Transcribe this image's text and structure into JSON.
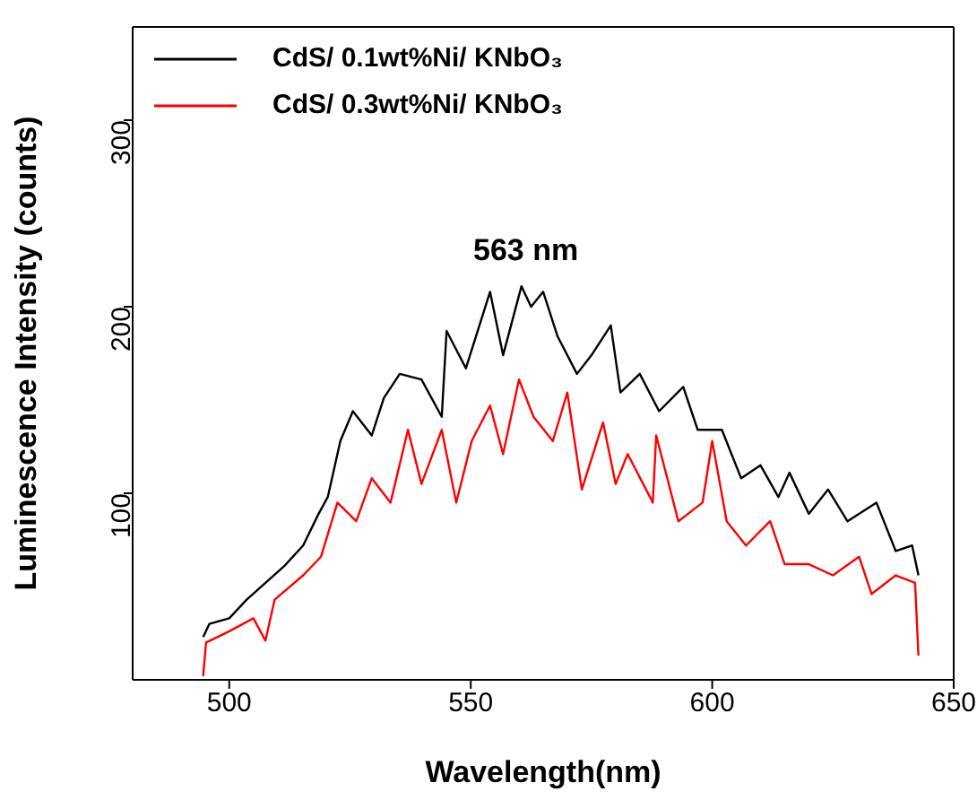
{
  "chart_data": {
    "type": "line",
    "xlabel": "Wavelength(nm)",
    "ylabel": "Luminescence Intensity (counts)",
    "xlim": [
      480,
      650
    ],
    "xticks": [
      500,
      550,
      600,
      650
    ],
    "ylim": [
      0,
      350
    ],
    "yticks": [
      100,
      200,
      300
    ],
    "legend": "top left",
    "marker": "none",
    "line_style": "solid",
    "annotations": [
      "563 nm"
    ],
    "series": [
      {
        "name": "CdS/ 0.1wt%Ni/ KNbO₃",
        "color": "#000000",
        "x": [
          494.6,
          495.9,
          500,
          503.6,
          507.5,
          511.4,
          515.3,
          518.5,
          520.4,
          522.4,
          523,
          525.6,
          529.5,
          532,
          535.3,
          539.8,
          544,
          545,
          549,
          554,
          556.7,
          560.5,
          562.5,
          565,
          568,
          572,
          575,
          579,
          581,
          585,
          589,
          594,
          597,
          602,
          606,
          610,
          613.7,
          616,
          620,
          624,
          628,
          634,
          638,
          641.4,
          642.7
        ],
        "values": [
          23,
          30,
          33,
          43,
          52,
          61,
          72,
          89,
          98,
          121,
          128,
          144,
          131,
          151,
          164,
          161,
          141,
          187,
          167,
          208,
          174,
          211,
          200,
          208,
          184,
          164,
          174,
          190,
          154,
          164,
          144,
          157,
          134,
          134,
          108,
          115,
          98,
          111,
          89,
          102,
          85,
          95,
          69,
          72,
          56
        ]
      },
      {
        "name": "CdS/ 0.3wt%Ni/ KNbO₃",
        "color": "#ff0000",
        "x": [
          494.6,
          495.2,
          500,
          505,
          507.5,
          509.4,
          515.3,
          519,
          522.4,
          526.3,
          529.5,
          533.4,
          537,
          539.8,
          544,
          547,
          550.2,
          554,
          556.7,
          560,
          563,
          567,
          570,
          573,
          577.4,
          580,
          582.5,
          587.7,
          588.4,
          593,
          598,
          600,
          603,
          607,
          612,
          615,
          620,
          625,
          630.4,
          633,
          638,
          642,
          642.7
        ],
        "values": [
          2,
          20,
          26,
          33,
          21,
          43,
          56,
          66,
          95,
          85,
          108,
          95,
          134,
          105,
          134,
          95,
          128,
          147,
          121,
          161,
          141,
          128,
          154,
          102,
          138,
          105,
          121,
          95,
          131,
          85,
          95,
          128,
          85,
          72,
          85,
          62,
          62,
          56,
          66,
          46,
          56,
          52,
          13
        ]
      }
    ]
  }
}
